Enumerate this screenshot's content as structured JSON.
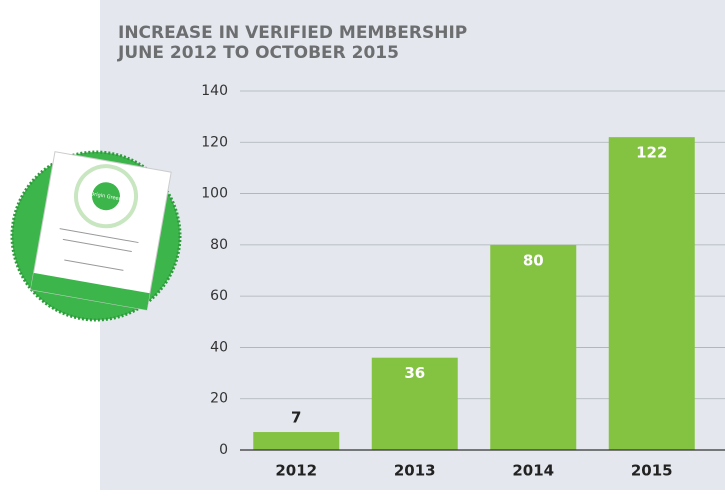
{
  "chart_data": {
    "type": "bar",
    "title": "INCREASE IN VERIFIED MEMBERSHIP",
    "subtitle": "JUNE 2012 TO OCTOBER 2015",
    "categories": [
      "2012",
      "2013",
      "2014",
      "2015"
    ],
    "values": [
      7,
      36,
      80,
      122
    ],
    "color": "#84c241",
    "ylim": [
      0,
      140
    ],
    "yticks": [
      0,
      20,
      40,
      60,
      80,
      100,
      120,
      140
    ],
    "grid": true
  },
  "badge": {
    "logo": "Origin Green"
  }
}
